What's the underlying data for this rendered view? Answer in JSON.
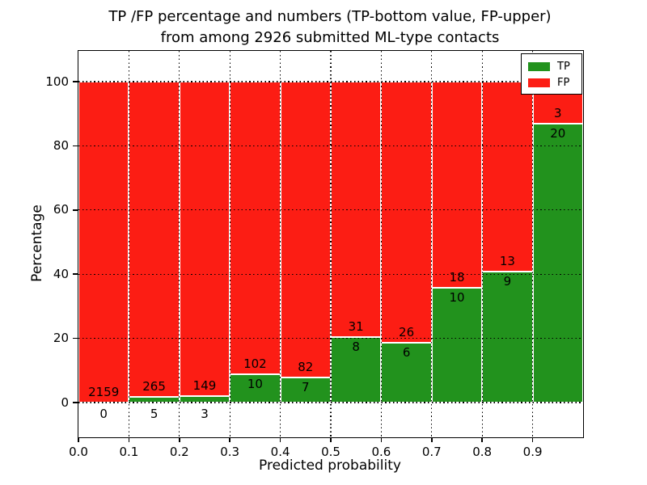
{
  "chart_data": {
    "type": "bar",
    "stacked": true,
    "percent_stacked": true,
    "title_line1": "TP /FP percentage and numbers (TP-bottom value, FP-upper)",
    "title_line2": "from among 2926 submitted ML-type contacts",
    "total_contacts": 2926,
    "xlabel": "Predicted probability",
    "ylabel": "Percentage",
    "categories": [
      "0.0-0.1",
      "0.1-0.2",
      "0.2-0.3",
      "0.3-0.4",
      "0.4-0.5",
      "0.5-0.6",
      "0.6-0.7",
      "0.7-0.8",
      "0.8-0.9",
      "0.9-1.0"
    ],
    "series": [
      {
        "name": "TP",
        "color": "#22921d",
        "counts": [
          0,
          5,
          3,
          10,
          7,
          8,
          6,
          10,
          9,
          20
        ]
      },
      {
        "name": "FP",
        "color": "#fc1d14",
        "counts": [
          2159,
          265,
          149,
          102,
          82,
          31,
          26,
          18,
          13,
          3
        ]
      }
    ],
    "tp_percent_of_bin": [
      0.0,
      1.85,
      1.97,
      8.93,
      7.87,
      20.51,
      18.75,
      35.71,
      40.91,
      86.96
    ],
    "xticks": [
      "0.0",
      "0.1",
      "0.2",
      "0.3",
      "0.4",
      "0.5",
      "0.6",
      "0.7",
      "0.8",
      "0.9"
    ],
    "yticks": [
      0,
      20,
      40,
      60,
      80,
      100
    ],
    "xlim": [
      0.0,
      1.0
    ],
    "ylim": [
      -11,
      110
    ],
    "grid": {
      "style": "dotted",
      "color": "#000000"
    },
    "bar_edge_color": "#ffffff",
    "legend": {
      "position": "upper-right"
    }
  }
}
